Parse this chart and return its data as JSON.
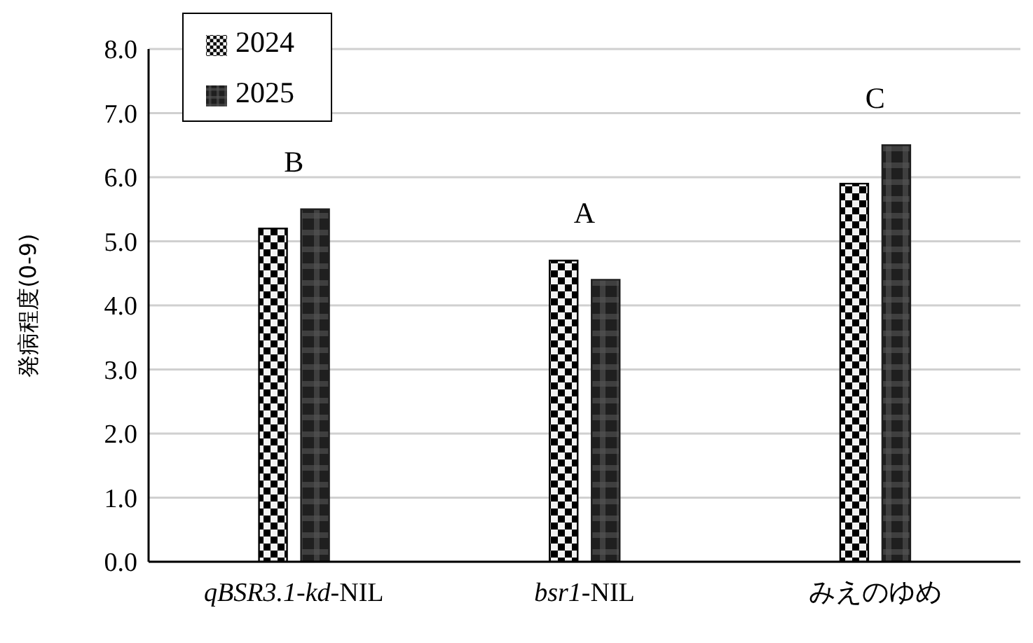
{
  "chart_data": {
    "type": "bar",
    "ylabel": "発病程度(0-9)",
    "categories": [
      "qBSR3.1-kd-NIL",
      "bsr1-NIL",
      "みえのゆめ"
    ],
    "series": [
      {
        "name": "2024",
        "color": "#000000",
        "values": [
          5.2,
          4.7,
          5.9
        ]
      },
      {
        "name": "2025",
        "color": "#1f1f1f",
        "values": [
          5.5,
          4.4,
          6.5
        ]
      }
    ],
    "annotations": [
      "B",
      "A",
      "C"
    ],
    "ylim": [
      0,
      8
    ],
    "yticks": [
      {
        "value": 0,
        "label": "0.0"
      },
      {
        "value": 1,
        "label": "1.0"
      },
      {
        "value": 2,
        "label": "2.0"
      },
      {
        "value": 3,
        "label": "3.0"
      },
      {
        "value": 4,
        "label": "4.0"
      },
      {
        "value": 5,
        "label": "5.0"
      },
      {
        "value": 6,
        "label": "6.0"
      },
      {
        "value": 7,
        "label": "7.0"
      },
      {
        "value": 8,
        "label": "8.0"
      }
    ],
    "grid": "y",
    "legend": "top left"
  }
}
